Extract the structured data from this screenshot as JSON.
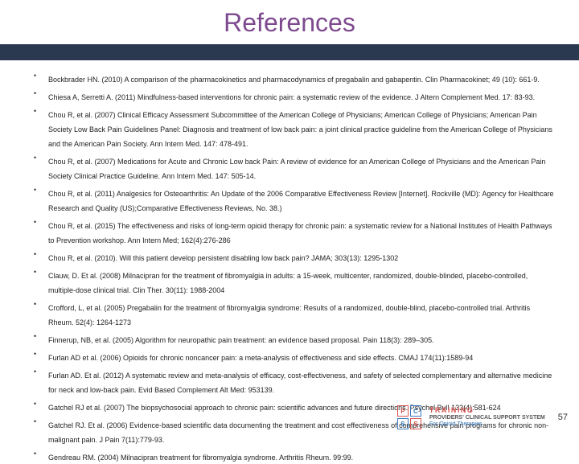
{
  "title": "References",
  "title_color": "#7e4a8f",
  "title_fontsize": 32,
  "band_color": "#2a3850",
  "bullet_fontsize": 9,
  "references": [
    "Bockbrader HN. (2010) A comparison of the pharmacokinetics and pharmacodynamics of pregabalin and gabapentin. Clin Pharmacokinet; 49 (10): 661-9.",
    "Chiesa A, Serretti A. (2011) Mindfulness-based interventions for chronic pain: a systematic review of the evidence. J Altern Complement Med. 17: 83-93.",
    "Chou R, et al. (2007) Clinical Efficacy Assessment Subcommittee of the American College of Physicians; American College of Physicians; American Pain Society Low Back Pain Guidelines Panel: Diagnosis and treatment of low back pain: a joint clinical practice guideline from the American College of Physicians and the American Pain Society. Ann Intern Med. 147: 478-491.",
    "Chou R, et al. (2007) Medications for Acute and Chronic Low back Pain: A review of evidence for an American College of Physicians and the American Pain Society Clinical Practice Guideline. Ann Intern Med. 147: 505-14.",
    "Chou R, et al. (2011) Analgesics for Osteoarthritis: An Update of the 2006 Comparative Effectiveness Review [Internet]. Rockville (MD): Agency for Healthcare Research and Quality (US);Comparative Effectiveness Reviews, No. 38.)",
    "Chou R, et al. (2015) The effectiveness and risks of long-term opioid therapy for chronic pain: a systematic review for a National Institutes of Health Pathways to Prevention workshop. Ann Intern Med; 162(4):276-286",
    "Chou R, et al. (2010). Will this patient develop persistent disabling low back pain? JAMA; 303(13): 1295-1302",
    "Clauw, D. Et al. (2008) Milnacipran for the treatment of fibromyalgia in adults: a 15-week, multicenter, randomized, double-blinded, placebo-controlled, multiple-dose clinical trial. Clin Ther. 30(11): 1988-2004",
    "Crofford, L, et al. (2005) Pregabalin for the treatment of fibromyalgia syndrome: Results of a randomized, double-blind, placebo-controlled trial. Arthritis Rheum. 52(4): 1264-1273",
    "Finnerup, NB, et al. (2005) Algorithm for neuropathic pain treatment: an evidence based proposal. Pain 118(3): 289–305.",
    "Furlan AD et al. (2006) Opioids for chronic noncancer pain: a meta-analysis of effectiveness and side effects. CMAJ 174(11):1589-94",
    "Furlan AD. Et al. (2012) A systematic review and meta-analysis of efficacy, cost-effectiveness, and safety of selected complementary and alternative medicine for neck and low-back pain. Evid Based Complement Alt Med: 953139.",
    "Gatchel RJ et al. (2007) The biopsychosocial approach to chronic pain: scientific advances and future directions. Psychol Bull 133(4):581-624",
    "Gatchel RJ. Et al. (2006) Evidence-based scientific data documenting the treatment and cost effectiveness of comprehensive pain programs for chronic non-malignant pain. J Pain 7(11):779-93.",
    "Gendreau RM. (2004) Milnacipran treatment for fibromyalgia syndrome. Arthritis Rheum. 99:99."
  ],
  "logo": {
    "cells": [
      "P",
      "C",
      "S",
      "S"
    ],
    "cell_pairs": [
      {
        "border": "#d9534f",
        "color": "#d9534f"
      },
      {
        "border": "#3a7bbf",
        "color": "#3a7bbf"
      },
      {
        "border": "#3a7bbf",
        "color": "#3a7bbf"
      },
      {
        "border": "#d9534f",
        "color": "#d9534f"
      }
    ],
    "line1": "TRAINING",
    "line2": "PROVIDERS' CLINICAL SUPPORT SYSTEM",
    "line3": "For Opioid Therapies"
  },
  "page_number": "57"
}
